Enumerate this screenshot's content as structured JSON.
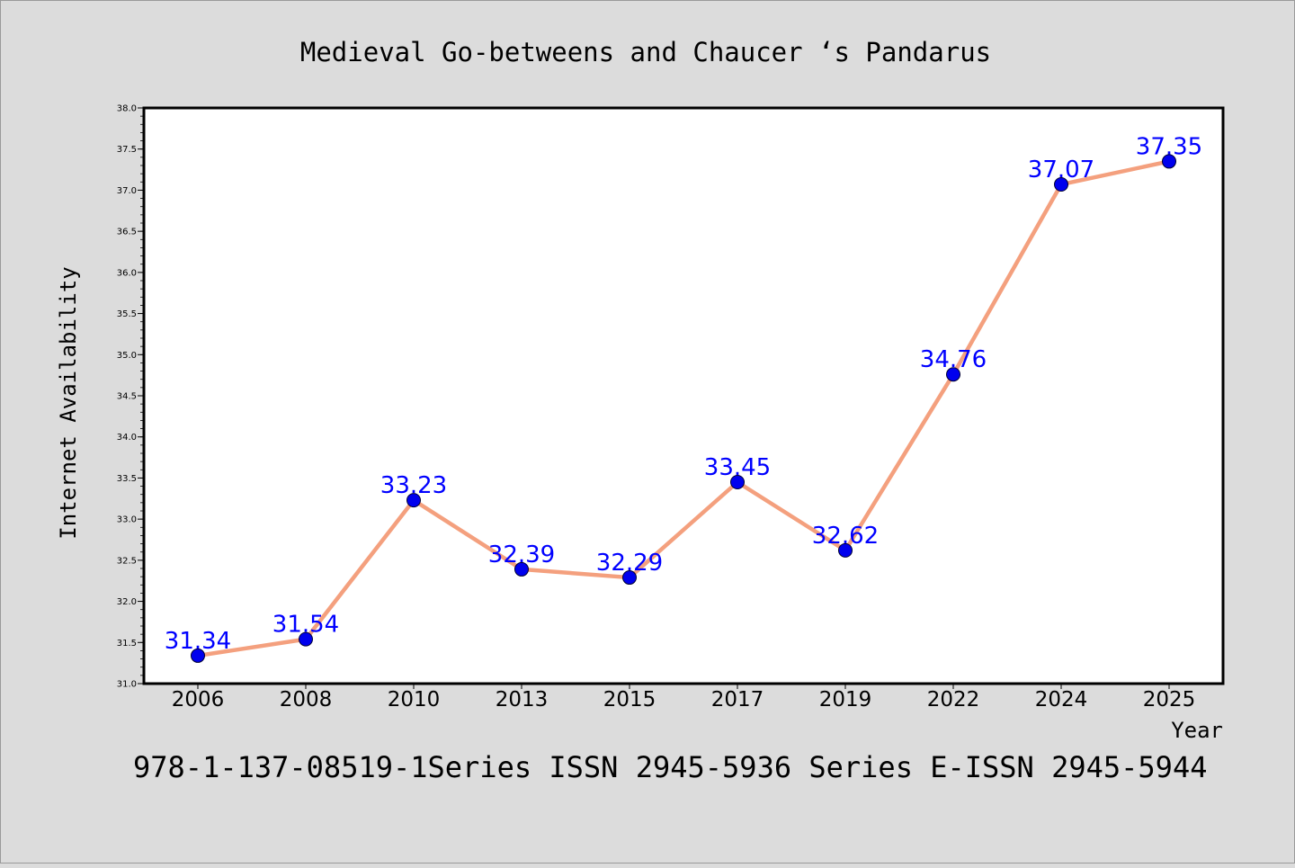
{
  "colors": {
    "background": "#dcdcdc",
    "plot_background": "#ffffff",
    "axis": "#000000",
    "line": "#f4a07e",
    "marker": "#0000ee",
    "label": "#0000ff",
    "text": "#000000"
  },
  "footer_text": "978-1-137-08519-1Series ISSN 2945-5936 Series E-ISSN 2945-5944",
  "chart_data": {
    "type": "line",
    "title": "Medieval Go-betweens and Chaucer ‘s Pandarus",
    "xlabel": "Year",
    "ylabel": "Internet Availability",
    "categories": [
      "2006",
      "2008",
      "2010",
      "2013",
      "2015",
      "2017",
      "2019",
      "2022",
      "2024",
      "2025"
    ],
    "values": [
      31.34,
      31.54,
      33.23,
      32.39,
      32.29,
      33.45,
      32.62,
      34.76,
      37.07,
      37.35
    ],
    "data_labels": [
      "31.34",
      "31.54",
      "33.23",
      "32.39",
      "32.29",
      "33.45",
      "32.62",
      "34.76",
      "37.07",
      "37.35"
    ],
    "ylim": [
      31.0,
      38.0
    ],
    "yticks": [
      "31.0",
      "31.5",
      "32.0",
      "32.5",
      "33.0",
      "33.5",
      "34.0",
      "34.5",
      "35.0",
      "35.5",
      "36.0",
      "36.5",
      "37.0",
      "37.5",
      "38.0"
    ],
    "grid": false,
    "legend": "none"
  }
}
